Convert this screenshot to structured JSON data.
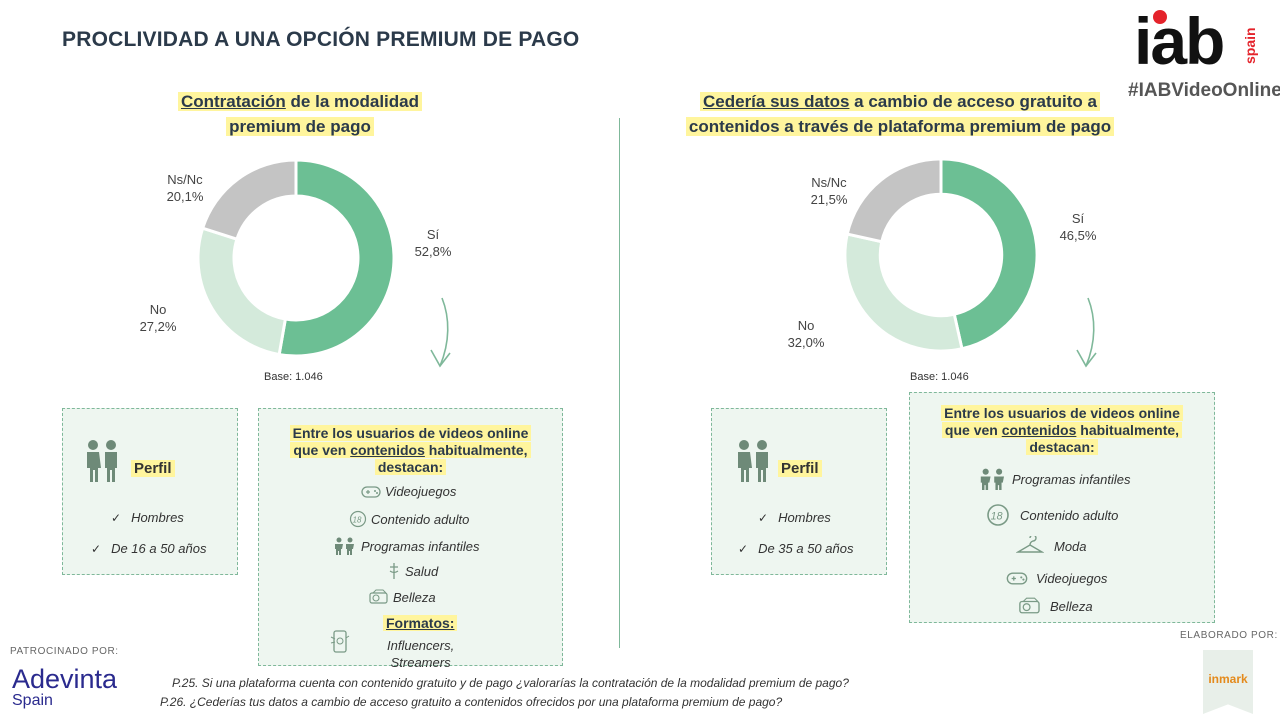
{
  "page_title": "PROCLIVIDAD A UNA OPCIÓN PREMIUM DE PAGO",
  "hashtag": "#IABVideoOnline",
  "logo": {
    "main": "iab",
    "sub": "spain",
    "colors": {
      "dot": "#e4232b",
      "text": "#111111"
    }
  },
  "colors": {
    "si": "#6cbf94",
    "no": "#d4eadb",
    "nsnc": "#c4c4c4",
    "highlight": "#fff59d",
    "box_bg": "#eef6f0",
    "box_border": "#7fb89a"
  },
  "chart_data": [
    {
      "type": "pie",
      "title_parts": [
        "Contratación",
        " de la modalidad premium de pago"
      ],
      "categories": [
        "Sí",
        "No",
        "Ns/Nc"
      ],
      "values": [
        52.8,
        27.2,
        20.1
      ],
      "value_labels": [
        "52,8%",
        "27,2%",
        "20,1%"
      ],
      "base": "Base: 1.046",
      "donut": true
    },
    {
      "type": "pie",
      "title_parts": [
        "Cedería sus datos",
        " a cambio de acceso gratuito a contenidos a través de plataforma premium de pago"
      ],
      "categories": [
        "Sí",
        "No",
        "Ns/Nc"
      ],
      "values": [
        46.5,
        32.0,
        21.5
      ],
      "value_labels": [
        "46,5%",
        "32,0%",
        "21,5%"
      ],
      "base": "Base: 1.046",
      "donut": true
    }
  ],
  "left": {
    "title_line1_u": "Contratación",
    "title_line1_rest": "  de la modalidad",
    "title_line2": "premium  de pago",
    "perfil": {
      "label": "Perfil",
      "items": [
        "Hombres",
        "De 16 a 50 años"
      ],
      "icon": "people-icon"
    },
    "destacan": {
      "head_1": "Entre los usuarios de videos online",
      "head_2a": "que ven ",
      "head_2u": "contenidos",
      "head_2b": " habitualmente,",
      "head_3": "destacan:",
      "items": [
        {
          "label": "Videojuegos",
          "icon": "gamepad-icon"
        },
        {
          "label": "Contenido adulto",
          "icon": "eighteen-plus-icon"
        },
        {
          "label": "Programas infantiles",
          "icon": "children-icon"
        },
        {
          "label": "Salud",
          "icon": "health-icon"
        },
        {
          "label": "Belleza",
          "icon": "beauty-icon"
        }
      ],
      "formatos_label": "Formatos:",
      "formatos_items": [
        "Influencers,",
        "Streamers"
      ],
      "formatos_icon": "phone-icon"
    }
  },
  "right": {
    "title_line1_u": "Cedería sus datos",
    "title_line1_rest": " a cambio de acceso gratuito  a",
    "title_line2": "contenidos  a través de plataforma  premium de pago",
    "perfil": {
      "label": "Perfil",
      "items": [
        "Hombres",
        "De 35 a 50 años"
      ],
      "icon": "people-icon"
    },
    "destacan": {
      "head_1": "Entre los usuarios de videos online",
      "head_2a": "que ven ",
      "head_2u": "contenidos",
      "head_2b": " habitualmente,",
      "head_3": "destacan:",
      "items": [
        {
          "label": "Programas infantiles",
          "icon": "children-icon"
        },
        {
          "label": "Contenido adulto",
          "icon": "eighteen-plus-icon"
        },
        {
          "label": "Moda",
          "icon": "hanger-icon"
        },
        {
          "label": "Videojuegos",
          "icon": "gamepad-icon"
        },
        {
          "label": "Belleza",
          "icon": "beauty-icon"
        }
      ]
    }
  },
  "footer": {
    "sponsor_label": "PATROCINADO POR:",
    "sponsor_name": "Adevinta",
    "sponsor_sub": "Spain",
    "elaborado_label": "ELABORADO POR:",
    "elaborado_name": "inmark",
    "p25": "P.25. Si una plataforma cuenta con contenido gratuito y de pago ¿valorarías la contratación de la modalidad premium de pago?",
    "p26": "P.26. ¿Cederías tus datos a cambio de acceso gratuito a contenidos ofrecidos por una plataforma premium de pago?"
  }
}
